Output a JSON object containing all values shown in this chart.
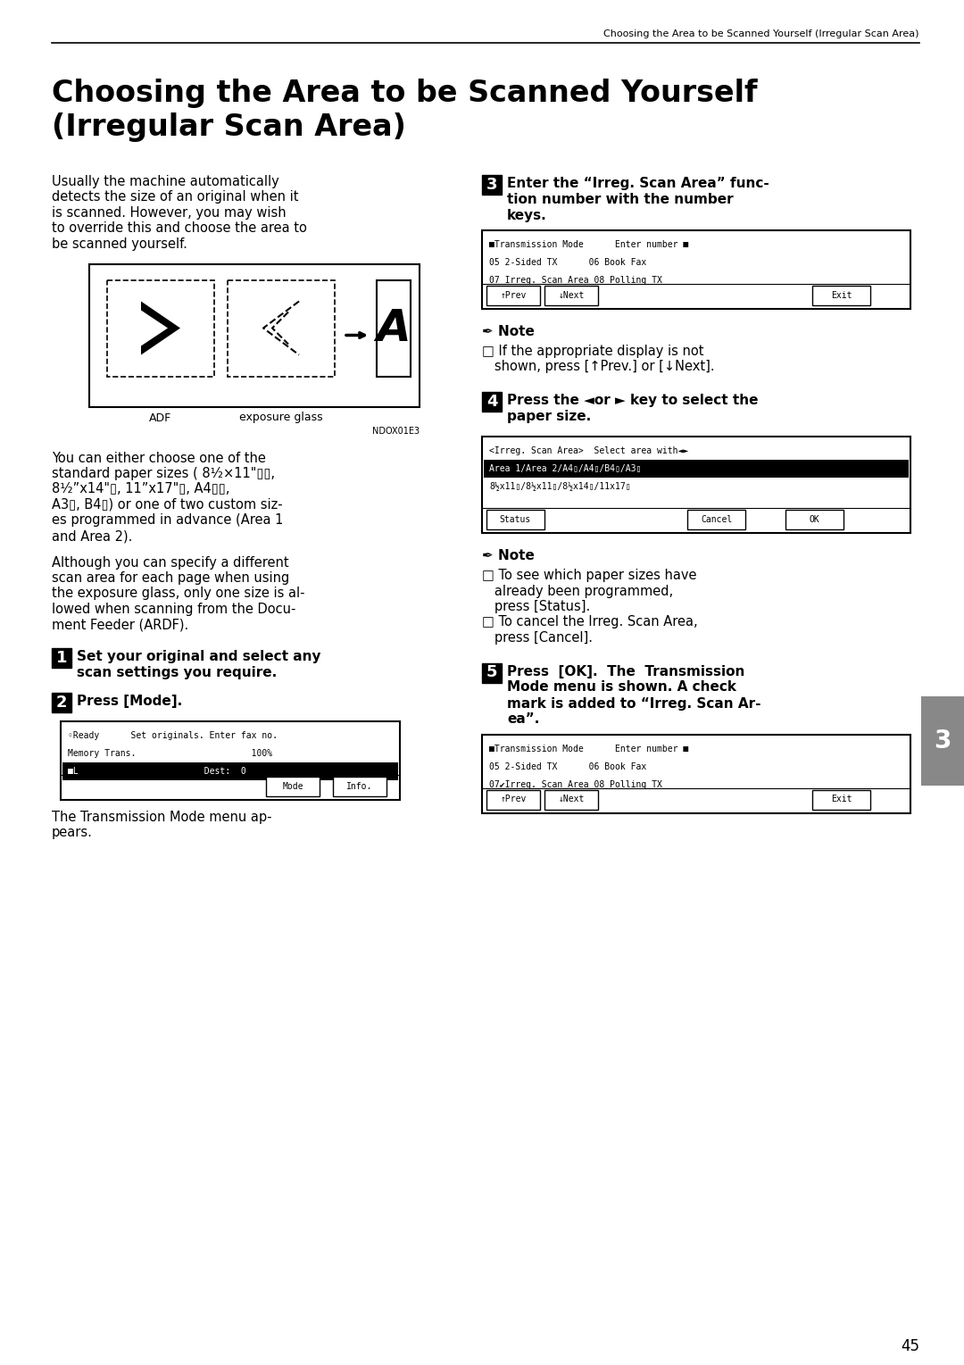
{
  "header_text": "Choosing the Area to be Scanned Yourself (Irregular Scan Area)",
  "title_line1": "Choosing the Area to be Scanned Yourself",
  "title_line2": "(Irregular Scan Area)",
  "page_number": "45",
  "tab_number": "3",
  "bg_color": "#ffffff",
  "body_text_left": [
    "Usually the machine automatically",
    "detects the size of an original when it",
    "is scanned. However, you may wish",
    "to override this and choose the area to",
    "be scanned yourself."
  ],
  "body_text_left2": [
    "You can either choose one of the",
    "standard paper sizes ( 8¹⁄₂×11\"▯▯,",
    "8¹⁄₂”x14\"▯, 11”x17\"▯, A4▯▯,",
    "A3▯, B4▯) or one of two custom siz-",
    "es programmed in advance (Area 1",
    "and Area 2)."
  ],
  "body_text_left3": [
    "Although you can specify a different",
    "scan area for each page when using",
    "the exposure glass, only one size is al-",
    "lowed when scanning from the Docu-",
    "ment Feeder (ARDF)."
  ],
  "step1_bold": "Set your original and select any",
  "step1_bold2": "scan settings you require.",
  "step2_bold": "Press [Mode].",
  "screen1_lines": [
    "◦Ready      Set originals. Enter fax no.",
    "Memory Trans.                      100%",
    "■L                        Dest:  0"
  ],
  "screen1_buttons": [
    "Mode",
    "Info."
  ],
  "step3_text_bold": "Enter the “Irreg. Scan Area” func-",
  "step3_text_bold2": "tion number with the number",
  "step3_text_bold3": "keys.",
  "screen2_lines": [
    "■Transmission Mode      Enter number ■",
    "05 2-Sided TX      06 Book Fax",
    "07 Irreg. Scan Area 08 Polling TX"
  ],
  "screen2_buttons": [
    "↑Prev",
    "↓Next",
    "Exit"
  ],
  "note1_lines": [
    "□ If the appropriate display is not",
    "   shown, press [↑Prev.] or [↓Next]."
  ],
  "step4_bold": "Press the ◄or ► key to select the",
  "step4_bold2": "paper size.",
  "screen3_line0": "<Irreg. Scan Area>  Select area with◄►",
  "screen3_line1": "Area 1/Area 2/A4▯/A4▯/B4▯/A3▯",
  "screen3_line2": "8½x11▯/8½x11▯/8½x14▯/11x17▯",
  "screen3_buttons": [
    "Status",
    "Cancel",
    "OK"
  ],
  "note2_lines": [
    "□ To see which paper sizes have",
    "   already been programmed,",
    "   press [Status].",
    "□ To cancel the Irreg. Scan Area,",
    "   press [Cancel]."
  ],
  "step5_bold": "Press  [OK].  The  Transmission",
  "step5_bold2": "Mode menu is shown. A check",
  "step5_bold3": "mark is added to “Irreg. Scan Ar-",
  "step5_bold4": "ea”.",
  "screen4_lines": [
    "■Transmission Mode      Enter number ■",
    "05 2-Sided TX      06 Book Fax",
    "07✔Irreg. Scan Area 08 Polling TX"
  ],
  "screen4_buttons": [
    "↑Prev",
    "↓Next",
    "Exit"
  ]
}
